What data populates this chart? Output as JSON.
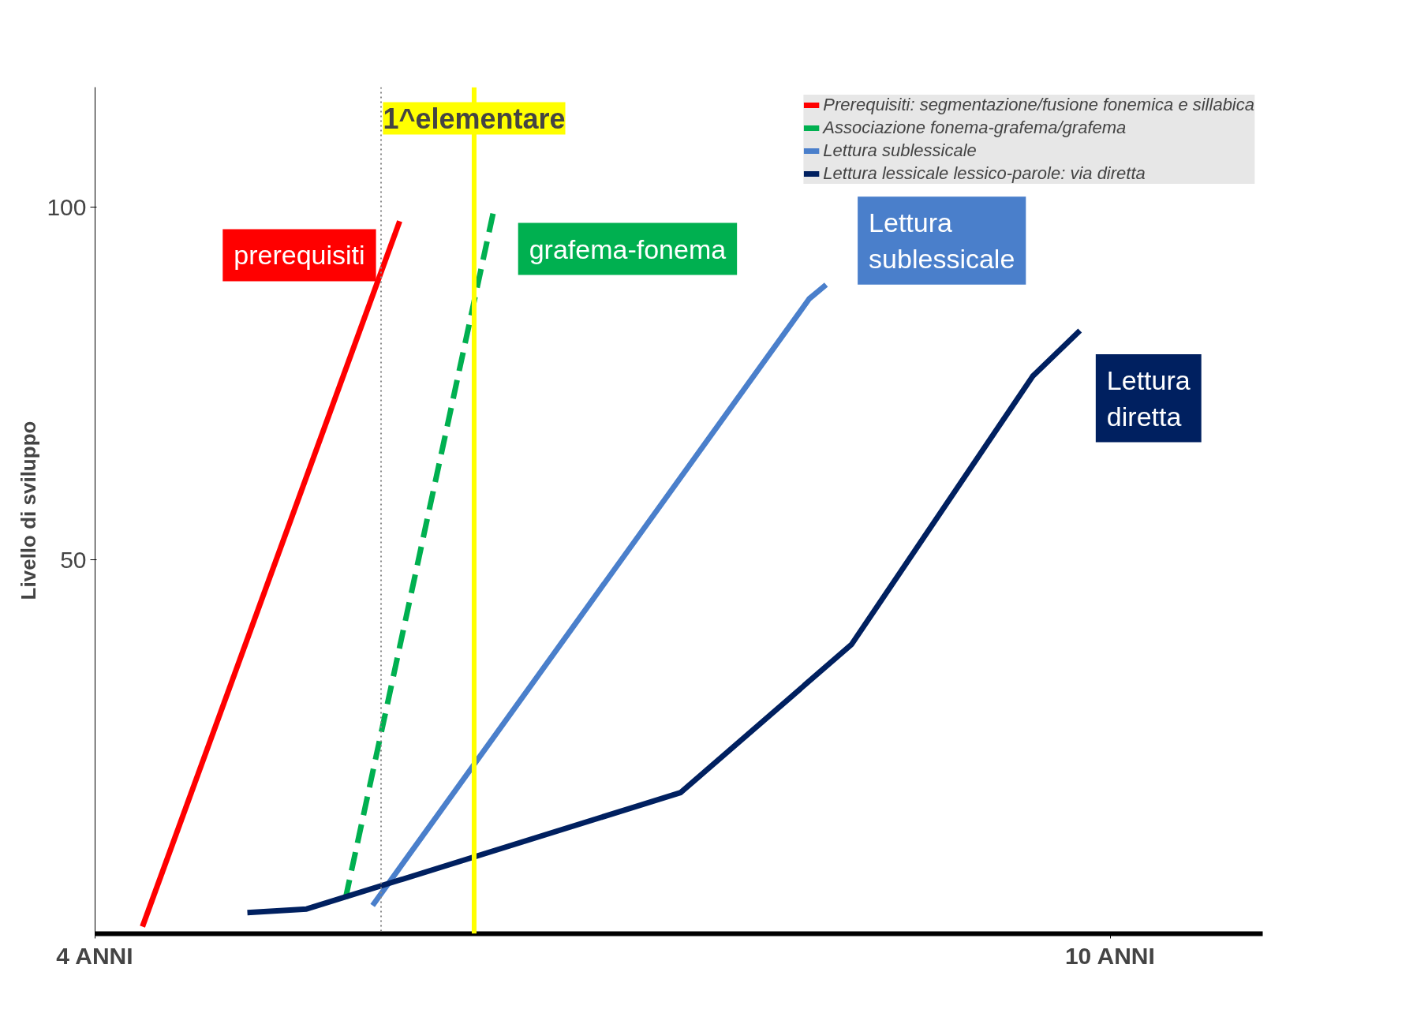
{
  "chart_data": {
    "type": "line",
    "ylabel": "Livello di sviluppo",
    "xlim": [
      4,
      10.9
    ],
    "ylim": [
      -3,
      117
    ],
    "xticks": [
      {
        "value": 4,
        "label": "4 ANNI"
      },
      {
        "value": 10,
        "label": "10 ANNI"
      }
    ],
    "yticks": [
      50,
      100
    ],
    "series": [
      {
        "name": "Prerequisiti: segmentazione/fusione fonemica e sillabica",
        "color": "#ff0000",
        "x": [
          4.28,
          5.8
        ],
        "values": [
          -2,
          98
        ]
      },
      {
        "name": "Associazione fonema-grafema/grafema",
        "color": "#00b050",
        "line_style": "dashed",
        "x": [
          5.48,
          6.36
        ],
        "values": [
          2,
          100
        ]
      },
      {
        "name": "Lettura sublessicale",
        "color": "#4a7fcb",
        "x": [
          5.64,
          8.22,
          8.32
        ],
        "values": [
          1,
          87,
          89
        ]
      },
      {
        "name": "Lettura lessicale lessico-parole: via diretta",
        "color": "#002060",
        "x": [
          4.9,
          5.25,
          7.46,
          8.47,
          9.54,
          9.82
        ],
        "values": [
          0,
          0.5,
          17,
          38,
          76,
          82.5
        ]
      }
    ],
    "ref_lines": [
      {
        "axis": "x",
        "value": 6.24,
        "label": "1^elementare",
        "color": "#ffff00"
      },
      {
        "axis": "x",
        "value": 5.69,
        "label": null,
        "color": "#888888",
        "line_style": "dotted"
      }
    ],
    "annotations": [
      "prerequisiti",
      "grafema-fonema",
      "Lettura sublessicale",
      "Lettura diretta"
    ],
    "legend": "top right",
    "grid": false,
    "marker": "none",
    "line_style": "solid"
  }
}
